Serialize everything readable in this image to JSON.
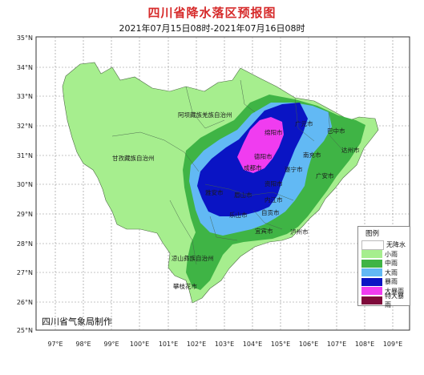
{
  "title": "四川省降水落区预报图",
  "subtitle": "2021年07月15日08时-2021年07月16日08时",
  "credit": "四川省气象局制作",
  "axes": {
    "lon_labels": [
      "97°E",
      "98°E",
      "99°E",
      "100°E",
      "101°E",
      "102°E",
      "103°E",
      "104°E",
      "105°E",
      "106°E",
      "107°E",
      "108°E",
      "109°E"
    ],
    "lat_labels": [
      "35°N",
      "34°N",
      "33°N",
      "32°N",
      "31°N",
      "30°N",
      "29°N",
      "28°N",
      "27°N",
      "26°N",
      "25°N"
    ]
  },
  "legend": {
    "title": "图例",
    "items": [
      {
        "label": "无降水",
        "color": "#ffffff"
      },
      {
        "label": "小雨",
        "color": "#a6ee8e"
      },
      {
        "label": "中雨",
        "color": "#3fb445"
      },
      {
        "label": "大雨",
        "color": "#62b9f4"
      },
      {
        "label": "暴雨",
        "color": "#0a14c4"
      },
      {
        "label": "大暴雨",
        "color": "#f03cf0"
      },
      {
        "label": "特大暴雨",
        "color": "#7e0a3a"
      }
    ]
  },
  "map_labels": [
    "阿坝藏族羌族自治州",
    "甘孜藏族自治州",
    "凉山彝族自治州",
    "攀枝花市",
    "绵阳市",
    "广元市",
    "巴中市",
    "达州市",
    "德阳市",
    "南充市",
    "成都市",
    "遂宁市",
    "广安市",
    "雅安市",
    "眉山市",
    "资阳市",
    "内江市",
    "乐山市",
    "自贡市",
    "宜宾市",
    "泸州市"
  ]
}
